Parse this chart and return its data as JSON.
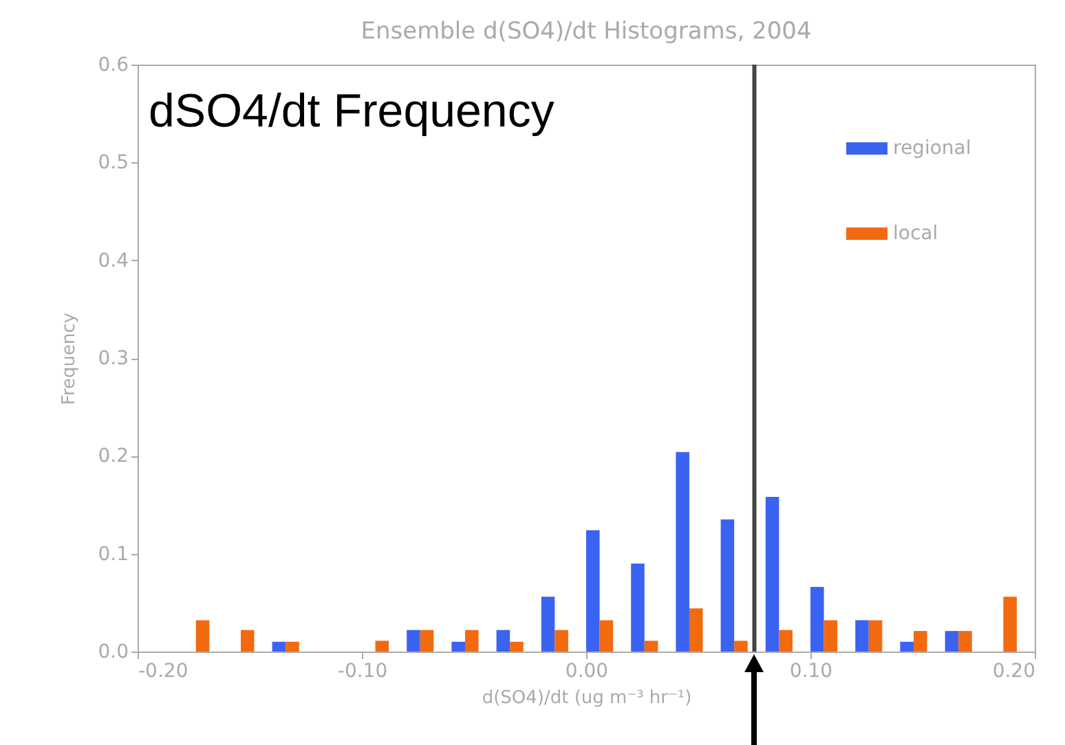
{
  "chart_data": {
    "type": "histogram",
    "title": "Ensemble d(SO4)/dt Histograms, 2004",
    "xlabel": "d(SO4)/dt (ug m⁻³ hr⁻¹)",
    "ylabel": "Frequency",
    "annotations": [
      "dSO4/dt Frequency"
    ],
    "bins": [
      -0.18,
      -0.16,
      -0.14,
      -0.12,
      -0.1,
      -0.08,
      -0.06,
      -0.04,
      -0.02,
      0,
      0.02,
      0.04,
      0.06,
      0.08,
      0.1,
      0.12,
      0.14,
      0.16,
      0.18,
      0.2
    ],
    "series": [
      {
        "name": "regional",
        "color": "#3b63f2",
        "values": [
          0,
          0,
          0.01,
          0,
          0,
          0.022,
          0.01,
          0.022,
          0.056,
          0.124,
          0.09,
          0.204,
          0.135,
          0.158,
          0.066,
          0.032,
          0.01,
          0.021,
          0
        ]
      },
      {
        "name": "local",
        "color": "#f26a0f",
        "values": [
          0.032,
          0.022,
          0.01,
          0,
          0.011,
          0.022,
          0.022,
          0.01,
          0.022,
          0.032,
          0.011,
          0.044,
          0.011,
          0.022,
          0.032,
          0.032,
          0.021,
          0.021,
          0.056
        ]
      }
    ],
    "xlim": [
      -0.2,
      0.2
    ],
    "ylim": [
      0,
      0.6
    ],
    "xticks": [
      {
        "value": -0.2,
        "label": "-0.20"
      },
      {
        "value": -0.1,
        "label": "-0.10"
      },
      {
        "value": 0,
        "label": "0.00"
      },
      {
        "value": 0.1,
        "label": "0.10"
      },
      {
        "value": 0.2,
        "label": "0.20"
      }
    ],
    "yticks": [
      {
        "value": 0,
        "label": "0.0"
      },
      {
        "value": 0.1,
        "label": "0.1"
      },
      {
        "value": 0.2,
        "label": "0.2"
      },
      {
        "value": 0.3,
        "label": "0.3"
      },
      {
        "value": 0.4,
        "label": "0.4"
      },
      {
        "value": 0.5,
        "label": "0.5"
      },
      {
        "value": 0.6,
        "label": "0.6"
      }
    ],
    "ref_lines": [
      {
        "axis": "x",
        "value": 0.075,
        "color": "#444444"
      }
    ],
    "legend": "top right"
  }
}
